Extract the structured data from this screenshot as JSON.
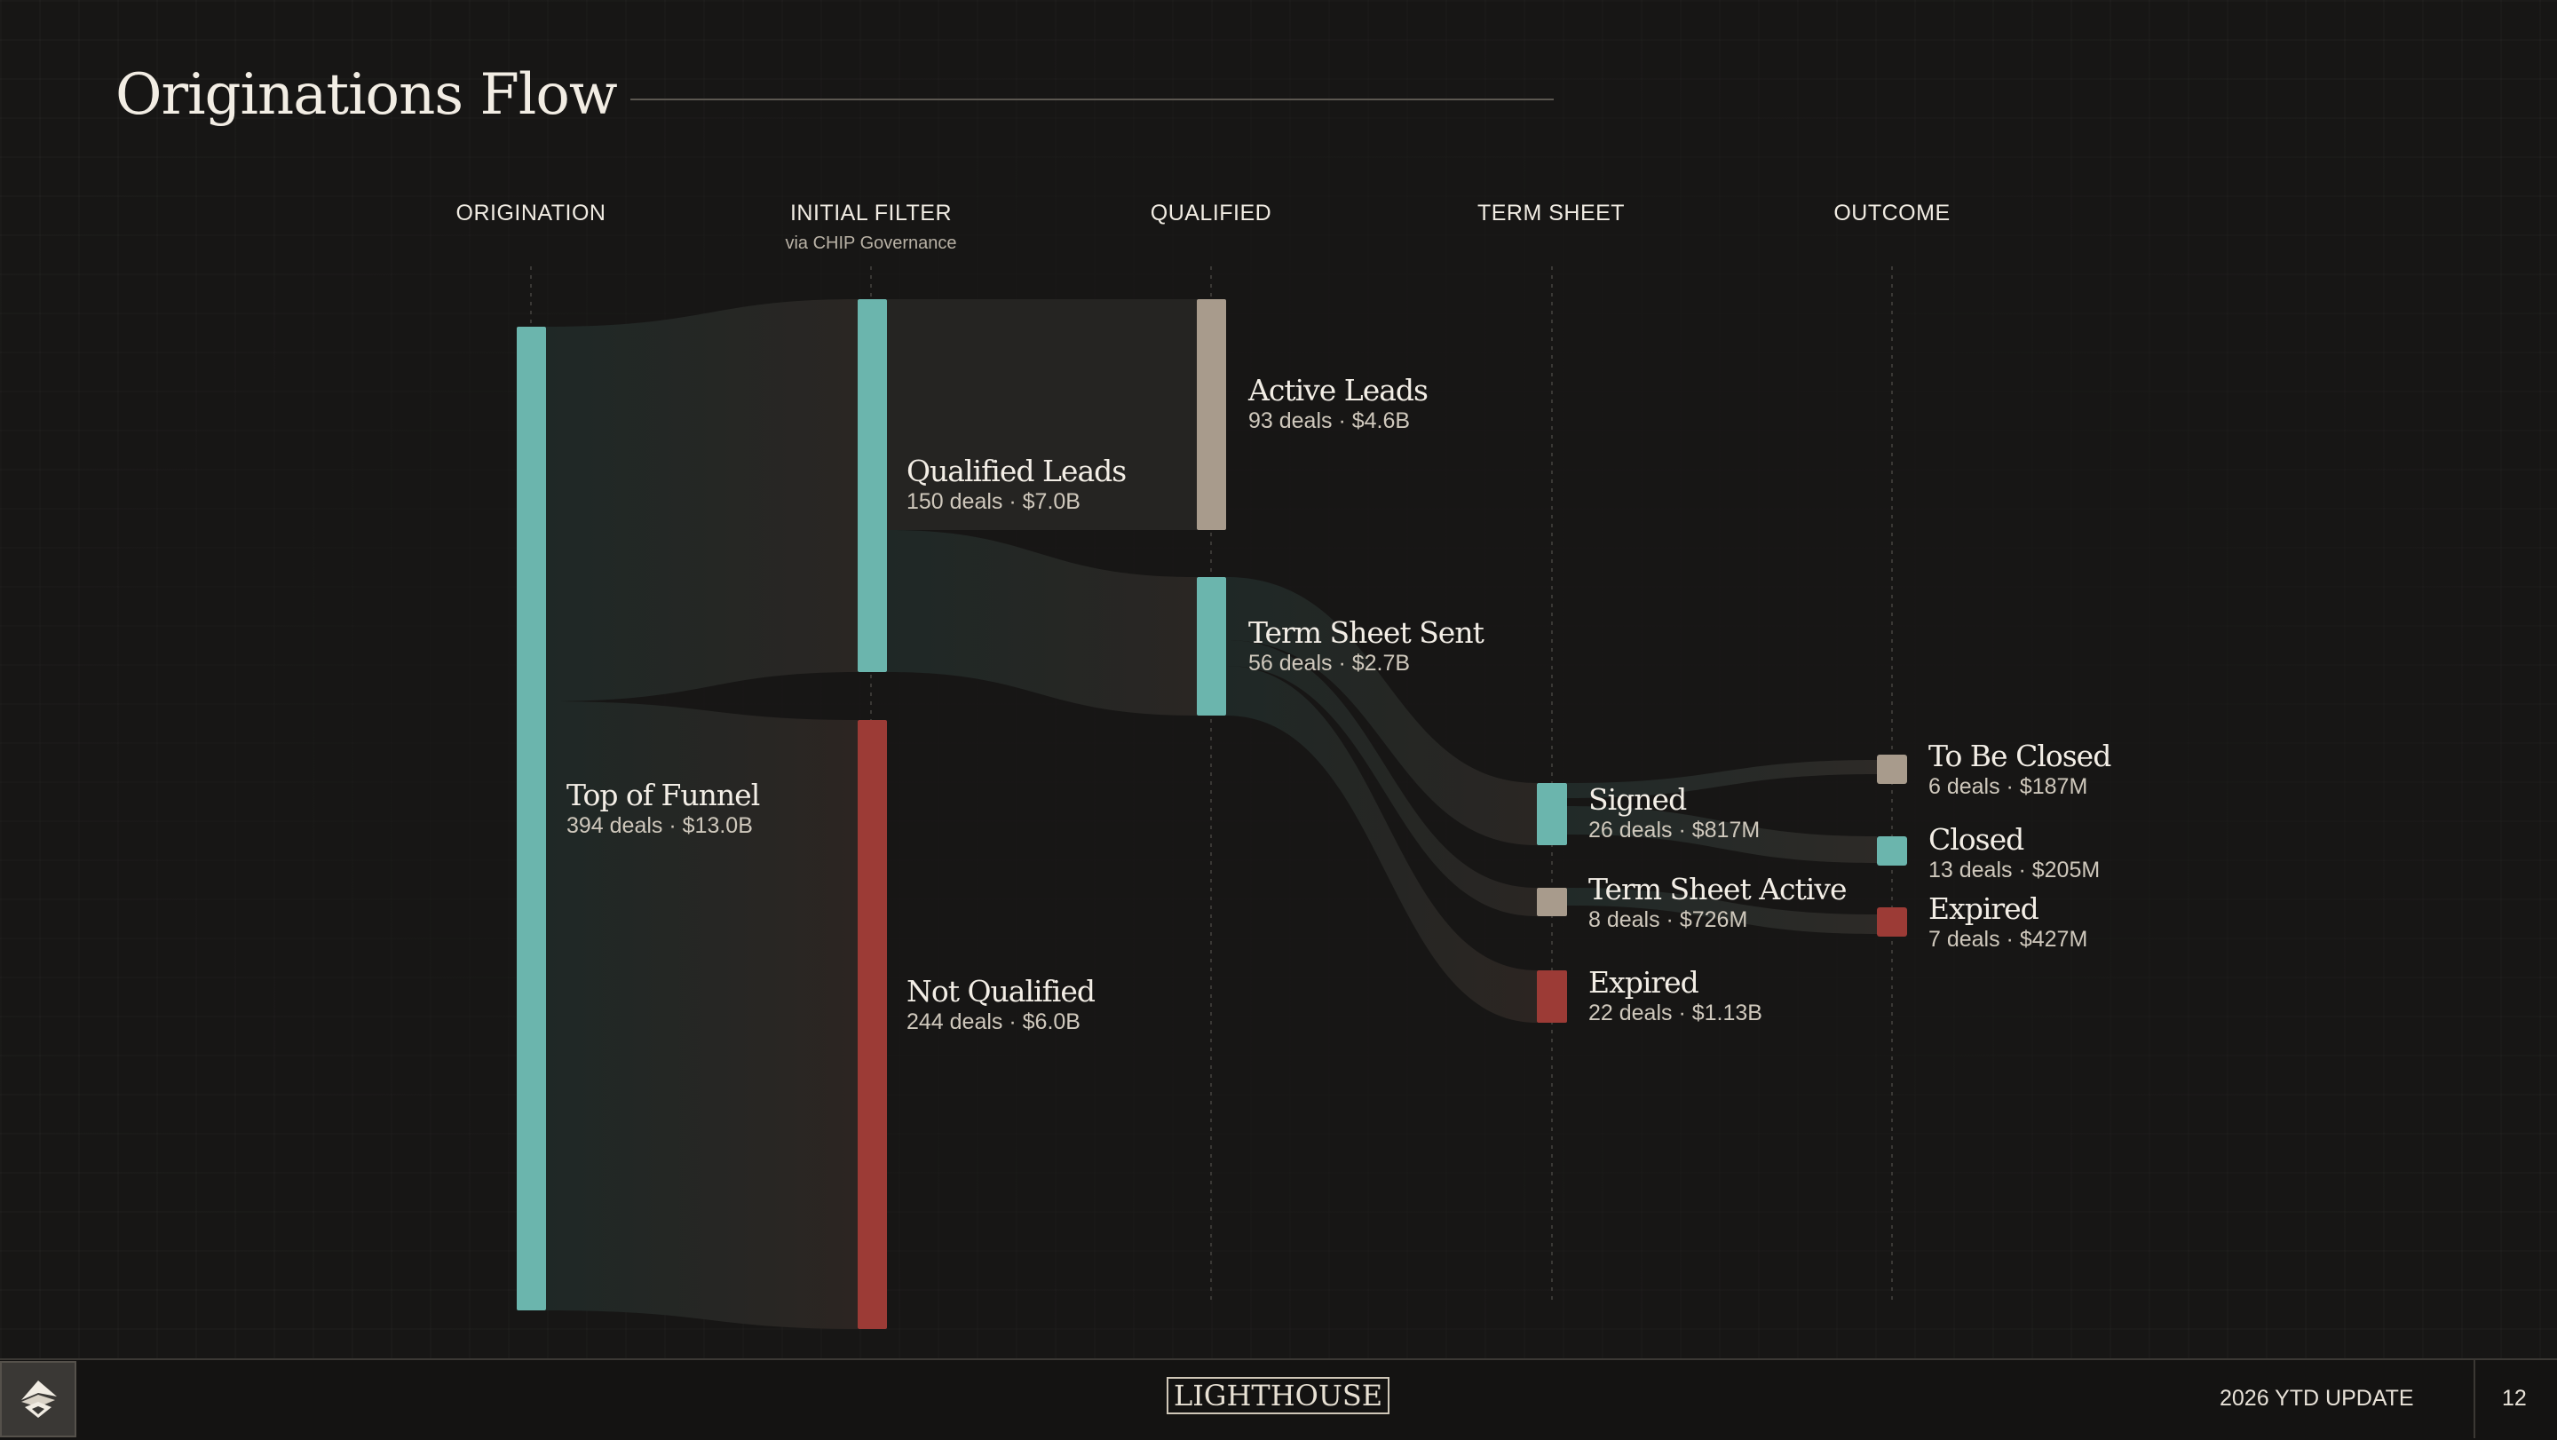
{
  "title": "Originations Flow",
  "stages": [
    {
      "label": "ORIGINATION",
      "sub": ""
    },
    {
      "label": "INITIAL FILTER",
      "sub": "via CHIP Governance"
    },
    {
      "label": "QUALIFIED",
      "sub": ""
    },
    {
      "label": "TERM SHEET",
      "sub": ""
    },
    {
      "label": "OUTCOME",
      "sub": ""
    }
  ],
  "nodes": [
    {
      "name": "Top of Funnel",
      "stats": "394 deals · $13.0B",
      "color": "#6bb5ad"
    },
    {
      "name": "Qualified Leads",
      "stats": "150 deals · $7.0B",
      "color": "#6bb5ad"
    },
    {
      "name": "Not Qualified",
      "stats": "244 deals · $6.0B",
      "color": "#9c3b36"
    },
    {
      "name": "Active Leads",
      "stats": "93 deals · $4.6B",
      "color": "#a89b8c"
    },
    {
      "name": "Term Sheet Sent",
      "stats": "56 deals · $2.7B",
      "color": "#6bb5ad"
    },
    {
      "name": "Signed",
      "stats": "26 deals · $817M",
      "color": "#6bb5ad"
    },
    {
      "name": "Term Sheet Active",
      "stats": "8 deals · $726M",
      "color": "#a89b8c"
    },
    {
      "name": "Expired",
      "stats": "22 deals · $1.13B",
      "color": "#9c3b36"
    },
    {
      "name": "To Be Closed",
      "stats": "6 deals · $187M",
      "color": "#a89b8c"
    },
    {
      "name": "Closed",
      "stats": "13 deals · $205M",
      "color": "#6bb5ad"
    },
    {
      "name": "Expired",
      "stats": "7 deals · $427M",
      "color": "#9c3b36"
    }
  ],
  "footer": {
    "brand": "LIGHTHOUSE",
    "update": "2026 YTD UPDATE",
    "page": "12"
  }
}
